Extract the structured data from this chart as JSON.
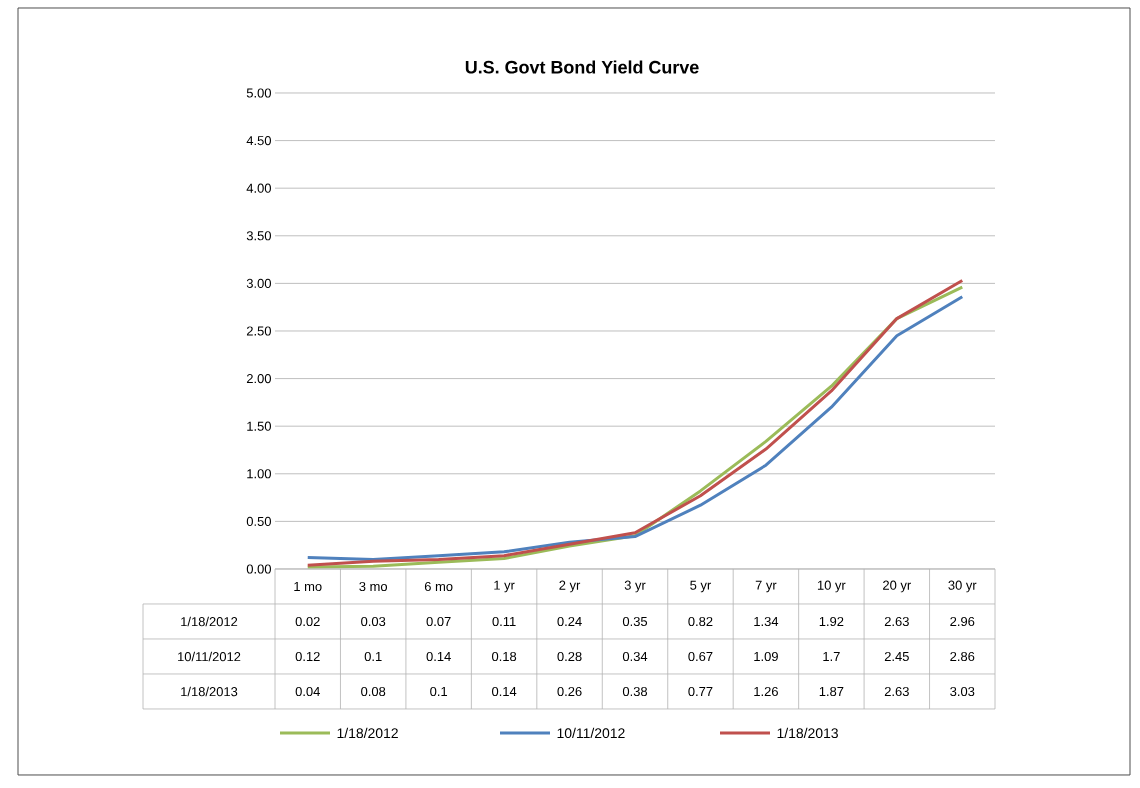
{
  "chart_data": {
    "type": "line",
    "title": "U.S. Govt Bond Yield Curve",
    "categories": [
      "1 mo",
      "3 mo",
      "6 mo",
      "1 yr",
      "2 yr",
      "3 yr",
      "5 yr",
      "7 yr",
      "10 yr",
      "20 yr",
      "30 yr"
    ],
    "series": [
      {
        "name": "1/18/2012",
        "color": "#9bbb59",
        "values": [
          0.02,
          0.03,
          0.07,
          0.11,
          0.24,
          0.35,
          0.82,
          1.34,
          1.92,
          2.63,
          2.96
        ]
      },
      {
        "name": "10/11/2012",
        "color": "#4f81bd",
        "values": [
          0.12,
          0.1,
          0.14,
          0.18,
          0.28,
          0.34,
          0.67,
          1.09,
          1.7,
          2.45,
          2.86
        ]
      },
      {
        "name": "1/18/2013",
        "color": "#c0504d",
        "values": [
          0.04,
          0.08,
          0.1,
          0.14,
          0.26,
          0.38,
          0.77,
          1.26,
          1.87,
          2.63,
          3.03
        ]
      }
    ],
    "ylim": [
      0,
      5
    ],
    "yticks": [
      {
        "value": 0,
        "label": "0.00"
      },
      {
        "value": 0.5,
        "label": "0.50"
      },
      {
        "value": 1,
        "label": "1.00"
      },
      {
        "value": 1.5,
        "label": "1.50"
      },
      {
        "value": 2,
        "label": "2.00"
      },
      {
        "value": 2.5,
        "label": "2.50"
      },
      {
        "value": 3,
        "label": "3.00"
      },
      {
        "value": 3.5,
        "label": "3.50"
      },
      {
        "value": 4,
        "label": "4.00"
      },
      {
        "value": 4.5,
        "label": "4.50"
      },
      {
        "value": 5,
        "label": "5.00"
      }
    ],
    "grid": "y",
    "legend": "bottom",
    "data_labels": true
  }
}
